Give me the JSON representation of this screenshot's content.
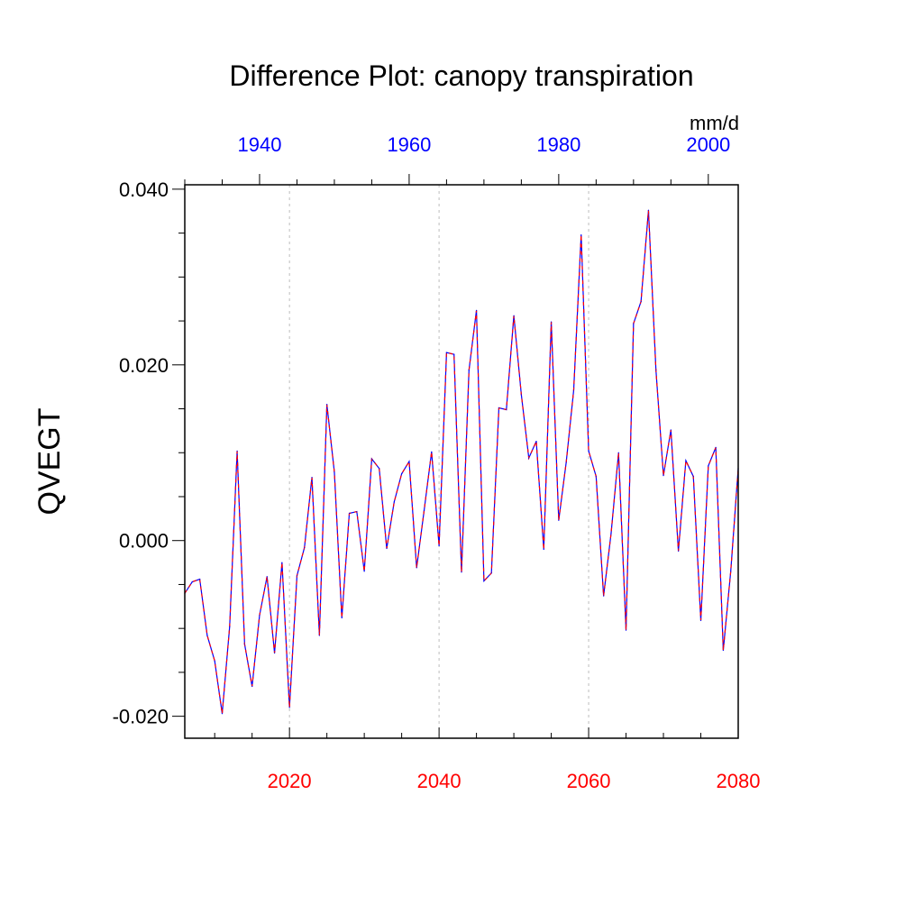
{
  "chart_data": {
    "type": "line",
    "title": "Difference Plot: canopy transpiration",
    "units": "mm/d",
    "ylabel": "QVEGT",
    "ylim": [
      -0.0225,
      0.0405
    ],
    "yticks": [
      "0.040",
      "0.020",
      "0.000",
      "-0.020"
    ],
    "ytick_values": [
      0.04,
      0.02,
      0.0,
      -0.02
    ],
    "bottom_axis": {
      "xlim": [
        2006,
        2080
      ],
      "ticks": [
        "2020",
        "2040",
        "2060",
        "2080"
      ],
      "tick_values": [
        2020,
        2040,
        2060,
        2080
      ],
      "color": "#ff0000"
    },
    "top_axis": {
      "xlim": [
        1930,
        2004
      ],
      "ticks": [
        "1940",
        "1960",
        "1980",
        "2000"
      ],
      "tick_values": [
        1940,
        1960,
        1980,
        2000
      ],
      "color": "#0000ff"
    },
    "grid": "vertical dotted lines at major bottom ticks",
    "series": [
      {
        "line_color": "#0000ff",
        "dash_color": "#ff0000",
        "x": [
          2006,
          2007,
          2008,
          2009,
          2010,
          2011,
          2012,
          2013,
          2014,
          2015,
          2016,
          2017,
          2018,
          2019,
          2020,
          2021,
          2022,
          2023,
          2024,
          2025,
          2026,
          2027,
          2028,
          2029,
          2030,
          2031,
          2032,
          2033,
          2034,
          2035,
          2036,
          2037,
          2038,
          2039,
          2040,
          2041,
          2042,
          2043,
          2044,
          2045,
          2046,
          2047,
          2048,
          2049,
          2050,
          2051,
          2052,
          2053,
          2054,
          2055,
          2056,
          2057,
          2058,
          2059,
          2060,
          2061,
          2062,
          2063,
          2064,
          2065,
          2066,
          2067,
          2068,
          2069,
          2070,
          2071,
          2072,
          2073,
          2074,
          2075,
          2076,
          2077,
          2078,
          2079,
          2080
        ],
        "values": [
          -0.006,
          -0.0047,
          -0.0044,
          -0.0108,
          -0.0137,
          -0.0197,
          -0.0098,
          0.0102,
          -0.0118,
          -0.0166,
          -0.0085,
          -0.0041,
          -0.0128,
          -0.0025,
          -0.019,
          -0.004,
          -0.0008,
          0.0072,
          -0.0108,
          0.0155,
          0.0078,
          -0.0088,
          0.0031,
          0.0033,
          -0.0035,
          0.0093,
          0.0082,
          -0.0009,
          0.0044,
          0.0076,
          0.009,
          -0.0031,
          0.0034,
          0.0101,
          -0.0006,
          0.0214,
          0.0212,
          -0.0036,
          0.0194,
          0.0262,
          -0.0046,
          -0.0037,
          0.0151,
          0.0149,
          0.0256,
          0.0166,
          0.0094,
          0.0113,
          -0.001,
          0.0249,
          0.0023,
          0.0089,
          0.0171,
          0.0348,
          0.0102,
          0.0073,
          -0.0063,
          0.0008,
          0.01,
          -0.0102,
          0.0247,
          0.0272,
          0.0376,
          0.0194,
          0.0074,
          0.0126,
          -0.0012,
          0.0091,
          0.0073,
          -0.0091,
          0.0085,
          0.0106,
          -0.0125,
          -0.0035,
          0.0082
        ]
      }
    ]
  }
}
